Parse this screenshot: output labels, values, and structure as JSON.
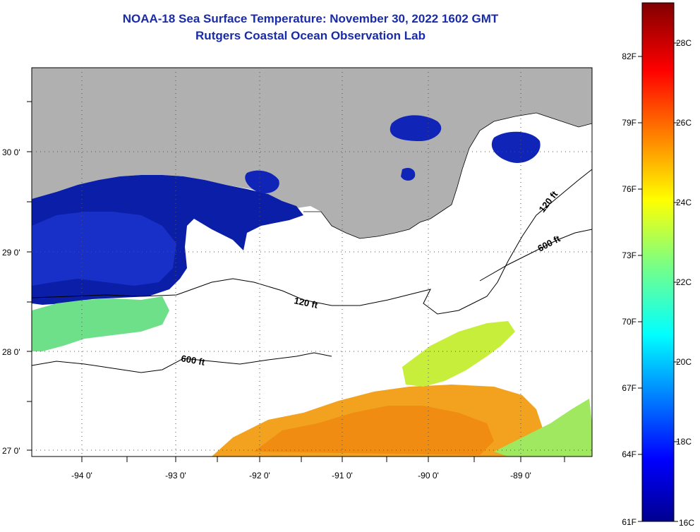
{
  "title": "NOAA-18 Sea Surface Temperature:  November 30, 2022 1602 GMT",
  "subtitle": "Rutgers Coastal Ocean Observation Lab",
  "map": {
    "lon_ticks": [
      "-94 0'",
      "-93 0'",
      "-92 0'",
      "-91 0'",
      "-90 0'",
      "-89 0'"
    ],
    "lat_ticks": [
      "30 0'",
      "29 0'",
      "28 0'",
      "27 0'"
    ],
    "contour_labels": [
      "120 ft",
      "600 ft",
      "120 ft",
      "600 ft"
    ],
    "colors": {
      "land": "#b0b0b0",
      "water_masked": "#ffffff",
      "grid": "#555555"
    }
  },
  "colorbar": {
    "fahrenheit_labels": [
      "82F",
      "79F",
      "76F",
      "73F",
      "70F",
      "67F",
      "64F",
      "61F"
    ],
    "celsius_labels": [
      "28C",
      "26C",
      "24C",
      "22C",
      "20C",
      "18C",
      "16C"
    ],
    "range_c": [
      16,
      29
    ]
  }
}
